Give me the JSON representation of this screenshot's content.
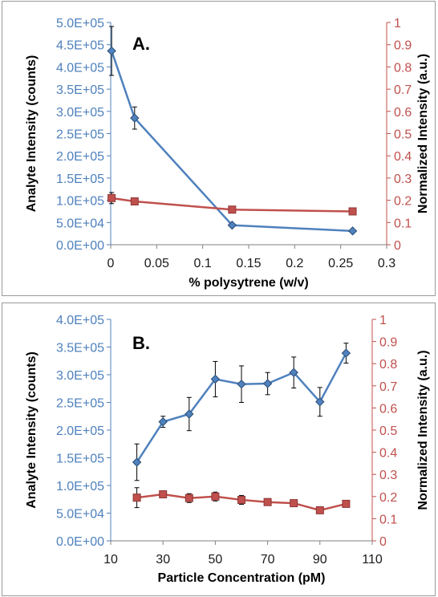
{
  "chart_data": [
    {
      "type": "line",
      "panel_label": "A.",
      "xlabel": "% polysytrene (w/v)",
      "ylabel": "Analyte Intensity (counts)",
      "y2label": "Normalized Intensity (a.u.)",
      "xlim": [
        0,
        0.3
      ],
      "ylim": [
        0,
        500000
      ],
      "y2lim": [
        0,
        1
      ],
      "x_ticks": [
        "0",
        "0.05",
        "0.1",
        "0.15",
        "0.2",
        "0.25",
        "0.3"
      ],
      "y_ticks": [
        "0.0E+00",
        "5.0E+04",
        "1.0E+05",
        "1.5E+05",
        "2.0E+05",
        "2.5E+05",
        "3.0E+05",
        "3.5E+05",
        "4.0E+05",
        "4.5E+05",
        "5.0E+05"
      ],
      "y2_ticks": [
        "0",
        "0.1",
        "0.2",
        "0.3",
        "0.4",
        "0.5",
        "0.6",
        "0.7",
        "0.8",
        "0.9",
        "1"
      ],
      "grid": false,
      "series": [
        {
          "axis": "left",
          "color": "#4f81bd",
          "marker": "diamond",
          "x": [
            0.001,
            0.026,
            0.132,
            0.263
          ],
          "y": [
            436000,
            285000,
            44000,
            31000
          ],
          "err": [
            55000,
            25000,
            0,
            0
          ]
        },
        {
          "axis": "right",
          "color": "#c0504d",
          "marker": "square",
          "x": [
            0.001,
            0.026,
            0.132,
            0.263
          ],
          "y": [
            0.21,
            0.195,
            0.158,
            0.15
          ],
          "err": [
            0.025,
            0,
            0,
            0
          ]
        }
      ]
    },
    {
      "type": "line",
      "panel_label": "B.",
      "xlabel": "Particle Concentration (pM)",
      "ylabel": "Analyte Intensity (counts)",
      "y2label": "Normalized Intensity (a.u.)",
      "xlim": [
        10,
        110
      ],
      "ylim": [
        0,
        400000
      ],
      "y2lim": [
        0,
        1
      ],
      "x_ticks": [
        "10",
        "30",
        "50",
        "70",
        "90",
        "110"
      ],
      "y_ticks": [
        "0.0E+00",
        "5.0E+04",
        "1.0E+05",
        "1.5E+05",
        "2.0E+05",
        "2.5E+05",
        "3.0E+05",
        "3.5E+05",
        "4.0E+05"
      ],
      "y2_ticks": [
        "0",
        "0.1",
        "0.2",
        "0.3",
        "0.4",
        "0.5",
        "0.6",
        "0.7",
        "0.8",
        "0.9",
        "1"
      ],
      "grid": false,
      "series": [
        {
          "axis": "left",
          "color": "#4f81bd",
          "marker": "diamond",
          "x": [
            20,
            30,
            40,
            50,
            60,
            70,
            80,
            90,
            100
          ],
          "y": [
            142000,
            215000,
            229000,
            292000,
            283000,
            284000,
            304000,
            251000,
            339000
          ],
          "err": [
            33000,
            10000,
            30000,
            32000,
            33000,
            20000,
            28000,
            26000,
            18000
          ]
        },
        {
          "axis": "right",
          "color": "#c0504d",
          "marker": "square",
          "x": [
            20,
            30,
            40,
            50,
            60,
            70,
            80,
            90,
            100
          ],
          "y": [
            0.195,
            0.21,
            0.193,
            0.2,
            0.185,
            0.175,
            0.17,
            0.138,
            0.167
          ],
          "err": [
            0.045,
            0.01,
            0.02,
            0.02,
            0.02,
            0,
            0,
            0,
            0
          ]
        }
      ]
    }
  ]
}
